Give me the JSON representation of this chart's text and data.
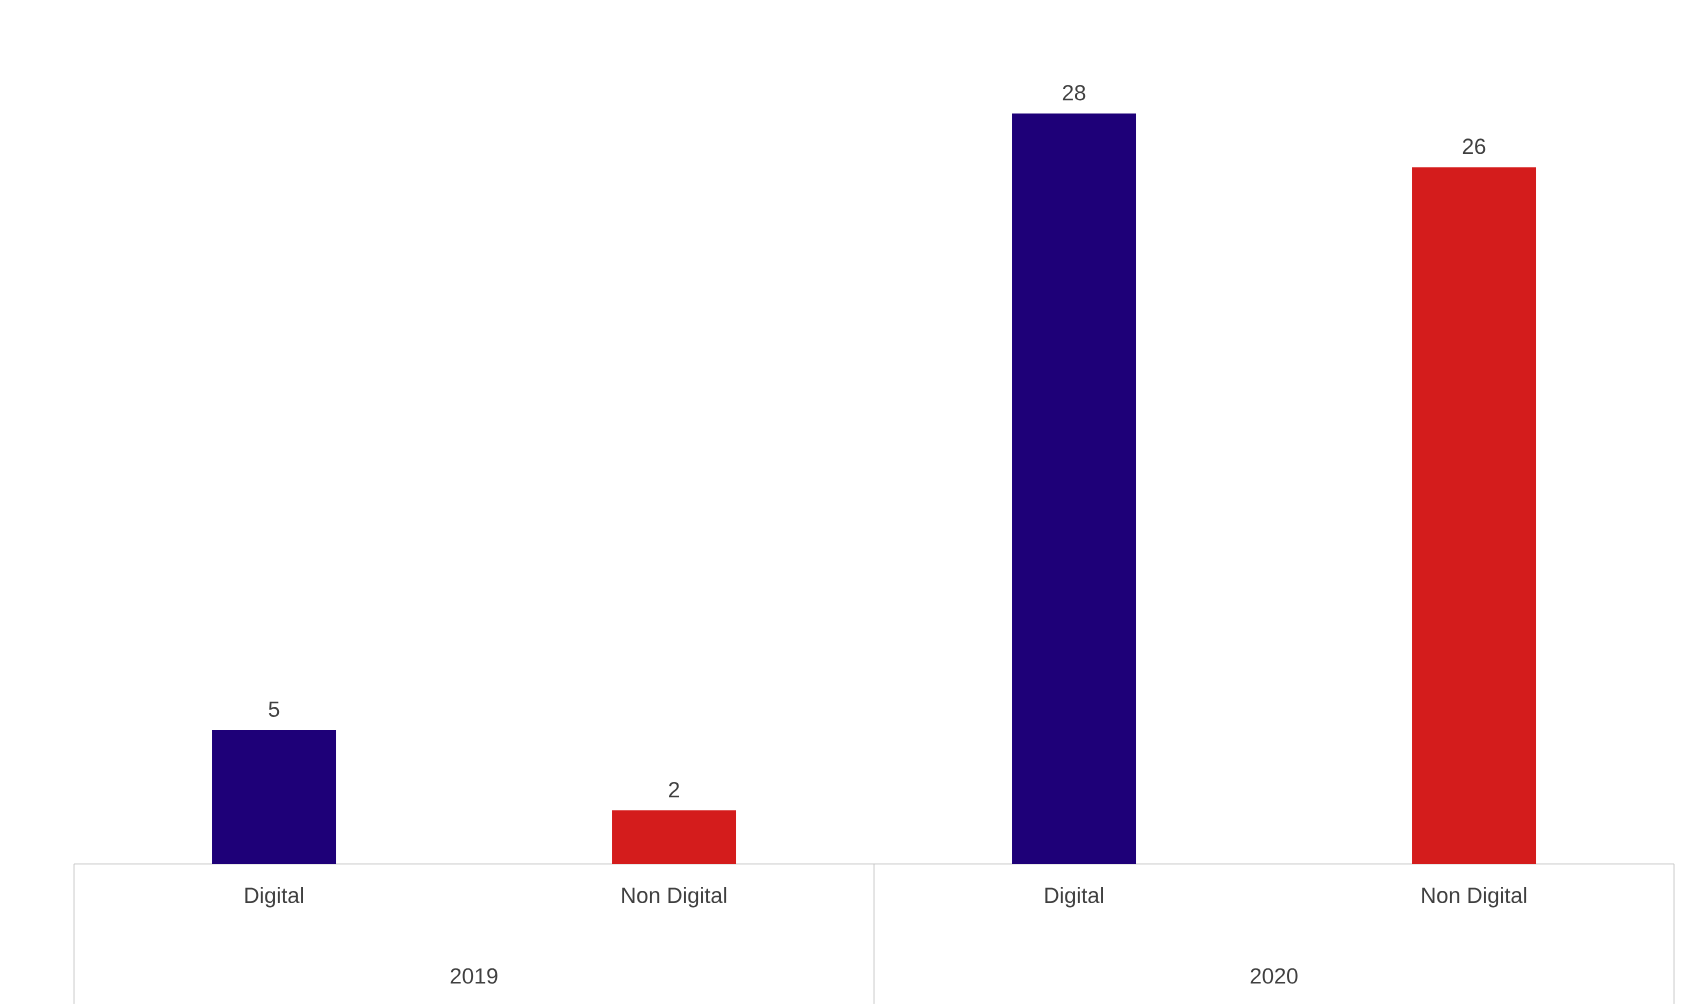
{
  "chart_data": {
    "type": "bar",
    "categories": [
      "Digital",
      "Non Digital",
      "Digital",
      "Non Digital"
    ],
    "values": [
      5,
      2,
      28,
      26
    ],
    "colors": [
      "#1e0078",
      "#d41c1c",
      "#1e0078",
      "#d41c1c"
    ],
    "data_labels": true,
    "annotations": [
      "2019",
      "2020"
    ]
  }
}
